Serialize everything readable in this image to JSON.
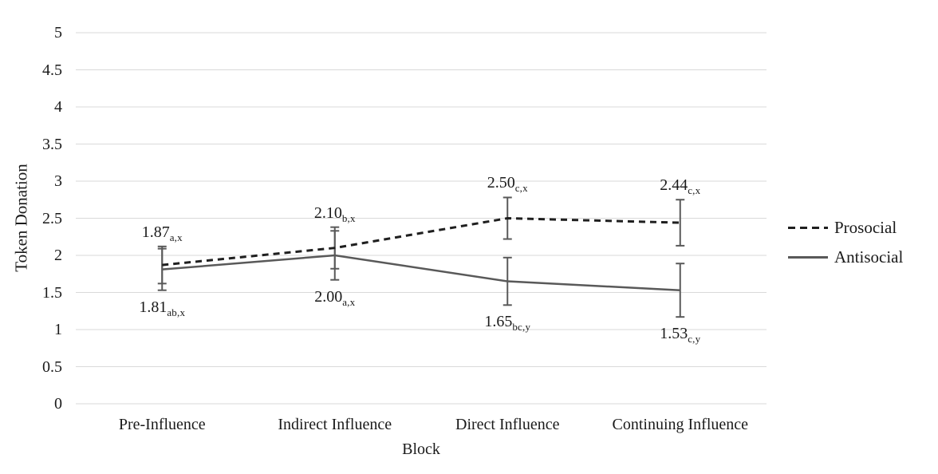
{
  "chart_data": {
    "type": "line",
    "title": "",
    "xlabel": "Block",
    "ylabel": "Token Donation",
    "ylim": [
      0,
      5
    ],
    "yticks": [
      "0",
      "0.5",
      "1",
      "1.5",
      "2",
      "2.5",
      "3",
      "3.5",
      "4",
      "4.5",
      "5"
    ],
    "categories": [
      "Pre-Influence",
      "Indirect Influence",
      "Direct Influence",
      "Continuing Influence"
    ],
    "grid": true,
    "legend_position": "right",
    "series": [
      {
        "name": "Prosocial",
        "line_style": "dashed",
        "color": "#1f1f1f",
        "values": [
          1.87,
          2.1,
          2.5,
          2.44
        ],
        "error_bars": [
          0.25,
          0.28,
          0.28,
          0.31
        ],
        "label_position": "above",
        "point_labels": [
          {
            "text": "1.87",
            "sub": "a,x"
          },
          {
            "text": "2.10",
            "sub": "b,x"
          },
          {
            "text": "2.50",
            "sub": "c,x"
          },
          {
            "text": "2.44",
            "sub": "c,x"
          }
        ]
      },
      {
        "name": "Antisocial",
        "line_style": "solid",
        "color": "#595959",
        "values": [
          1.81,
          2.0,
          1.65,
          1.53
        ],
        "error_bars": [
          0.28,
          0.33,
          0.32,
          0.36
        ],
        "label_position": "below",
        "point_labels": [
          {
            "text": "1.81",
            "sub": "ab,x"
          },
          {
            "text": "2.00",
            "sub": "a,x"
          },
          {
            "text": "1.65",
            "sub": "bc,y"
          },
          {
            "text": "1.53",
            "sub": "c,y"
          }
        ]
      }
    ],
    "colors": {
      "gridline": "#d9d9d9",
      "error_bar": "#595959",
      "text": "#1a1a1a",
      "background": "#ffffff"
    }
  }
}
